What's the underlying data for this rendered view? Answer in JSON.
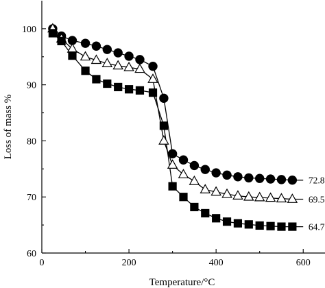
{
  "chart_data": {
    "type": "line",
    "xlabel": "Temperature/°C",
    "ylabel": "Loss of mass %",
    "xlim": [
      0,
      650
    ],
    "ylim": [
      60,
      105
    ],
    "xticks": [
      0,
      200,
      400,
      600
    ],
    "yticks": [
      60,
      70,
      80,
      90,
      100
    ],
    "grid": false,
    "series": [
      {
        "marker": "circle-filled",
        "end_label": "72.8%",
        "x": [
          25,
          45,
          70,
          100,
          125,
          150,
          175,
          200,
          225,
          255,
          280,
          300,
          325,
          350,
          375,
          400,
          425,
          450,
          475,
          500,
          525,
          550,
          575
        ],
        "y": [
          100,
          98.7,
          97.9,
          97.4,
          96.9,
          96.3,
          95.7,
          95.1,
          94.5,
          93.3,
          87.6,
          77.7,
          76.6,
          75.6,
          74.9,
          74.3,
          73.9,
          73.6,
          73.4,
          73.3,
          73.2,
          73.1,
          73.0
        ]
      },
      {
        "marker": "triangle-open",
        "end_label": "69.5%",
        "x": [
          25,
          45,
          70,
          100,
          125,
          150,
          175,
          200,
          225,
          255,
          280,
          300,
          325,
          350,
          375,
          400,
          425,
          450,
          475,
          500,
          525,
          550,
          575
        ],
        "y": [
          100,
          98.2,
          96.4,
          95.0,
          94.4,
          93.8,
          93.4,
          93.1,
          92.8,
          91.0,
          80.0,
          75.7,
          74.0,
          72.8,
          71.3,
          70.9,
          70.5,
          70.2,
          70.0,
          69.9,
          69.8,
          69.7,
          69.6
        ]
      },
      {
        "marker": "square-filled",
        "end_label": "64.7%",
        "x": [
          25,
          45,
          70,
          100,
          125,
          150,
          175,
          200,
          225,
          255,
          280,
          300,
          325,
          350,
          375,
          400,
          425,
          450,
          475,
          500,
          525,
          550,
          575
        ],
        "y": [
          99.2,
          97.8,
          95.2,
          92.5,
          91.0,
          90.2,
          89.6,
          89.2,
          89.0,
          88.6,
          82.7,
          71.9,
          70.0,
          68.2,
          67.1,
          66.2,
          65.6,
          65.3,
          65.1,
          64.9,
          64.8,
          64.7,
          64.7
        ]
      }
    ]
  }
}
